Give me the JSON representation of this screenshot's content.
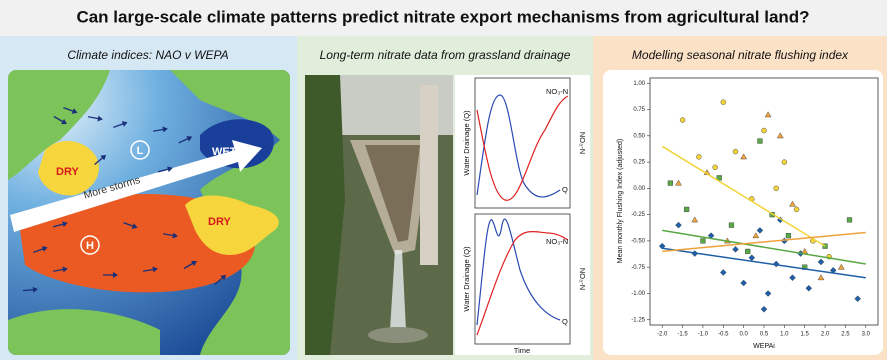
{
  "title": "Can large-scale climate patterns predict nitrate export mechanisms from agricultural land?",
  "panels": [
    {
      "heading": "Climate indices: NAO v WEPA"
    },
    {
      "heading": "Long-term nitrate data from grassland drainage"
    },
    {
      "heading": "Modelling seasonal nitrate flushing index"
    }
  ],
  "map": {
    "labels": {
      "dry_west": "DRY",
      "wet": "WET",
      "storms": "More storms",
      "low": "L",
      "high": "H",
      "dry_east": "DRY"
    }
  },
  "drainage": {
    "charts": [
      {
        "y_label": "Water Drainage (Q)",
        "right_label": "NO₃-N",
        "nitrate_label": "NO₃-N",
        "flow_label": "Q"
      },
      {
        "y_label": "Water Drainage (Q)",
        "right_label": "NO₃-N",
        "nitrate_label": "NO₃-N",
        "flow_label": "Q"
      }
    ],
    "x_label": "Time"
  },
  "scatter": {
    "type": "scatter",
    "x_label": "WEPAi",
    "y_label": "Mean monthly Flushing Index (adjusted)",
    "xlim": [
      -2.3,
      3.3
    ],
    "ylim": [
      -1.3,
      1.05
    ],
    "xticks": [
      {
        "value": -2,
        "label": "-2.0"
      },
      {
        "value": -1.5,
        "label": "-1.5"
      },
      {
        "value": -1,
        "label": "-1.0"
      },
      {
        "value": -0.5,
        "label": "-0.5"
      },
      {
        "value": 0,
        "label": "0.0"
      },
      {
        "value": 0.5,
        "label": "0.5"
      },
      {
        "value": 1,
        "label": "1.0"
      },
      {
        "value": 1.5,
        "label": "1.5"
      },
      {
        "value": 2,
        "label": "2.0"
      },
      {
        "value": 2.5,
        "label": "2.5"
      },
      {
        "value": 3,
        "label": "3.0"
      }
    ],
    "yticks": [
      {
        "value": 1,
        "label": "1.00"
      },
      {
        "value": 0.75,
        "label": "0.75"
      },
      {
        "value": 0.5,
        "label": "0.50"
      },
      {
        "value": 0.25,
        "label": "0.25"
      },
      {
        "value": 0,
        "label": "0.00"
      },
      {
        "value": -0.25,
        "label": "-0.25"
      },
      {
        "value": -0.5,
        "label": "-0.50"
      },
      {
        "value": -0.75,
        "label": "-0.75"
      },
      {
        "value": -1,
        "label": "-1.00"
      },
      {
        "value": -1.25,
        "label": "-1.25"
      }
    ],
    "series": [
      {
        "marker": "diamond",
        "color": "#1f5fa8",
        "x": [
          -2.0,
          -1.6,
          -1.2,
          -0.8,
          -0.5,
          -0.2,
          0.0,
          0.2,
          0.4,
          0.6,
          0.8,
          1.0,
          1.2,
          1.4,
          1.6,
          1.9,
          2.2,
          2.8,
          0.5,
          0.9
        ],
        "y": [
          -0.55,
          -0.35,
          -0.62,
          -0.45,
          -0.8,
          -0.58,
          -0.9,
          -0.66,
          -0.4,
          -1.0,
          -0.72,
          -0.5,
          -0.85,
          -0.62,
          -0.95,
          -0.7,
          -0.78,
          -1.05,
          -1.15,
          -0.3
        ],
        "fit_x": [
          -2,
          3
        ],
        "fit_y": [
          -0.57,
          -0.85
        ]
      },
      {
        "marker": "square",
        "color": "#5aa845",
        "x": [
          -1.8,
          -1.4,
          -1.0,
          -0.6,
          -0.3,
          0.1,
          0.4,
          0.7,
          1.1,
          1.5,
          2.0,
          2.6
        ],
        "y": [
          0.05,
          -0.2,
          -0.5,
          0.1,
          -0.35,
          -0.6,
          0.45,
          -0.25,
          -0.45,
          -0.75,
          -0.55,
          -0.3
        ],
        "fit_x": [
          -2,
          3
        ],
        "fit_y": [
          -0.4,
          -0.72
        ]
      },
      {
        "marker": "circle",
        "color": "#f2d43a",
        "x": [
          -1.5,
          -1.1,
          -0.7,
          -0.5,
          -0.2,
          0.2,
          0.5,
          0.8,
          1.0,
          1.3,
          1.7,
          2.1
        ],
        "y": [
          0.65,
          0.3,
          0.2,
          0.82,
          0.35,
          -0.1,
          0.55,
          0.0,
          0.25,
          -0.2,
          -0.5,
          -0.65
        ],
        "fit_x": [
          -2,
          2
        ],
        "fit_y": [
          0.4,
          -0.55
        ]
      },
      {
        "marker": "triangle",
        "color": "#f0a23a",
        "x": [
          -1.6,
          -1.2,
          -0.9,
          -0.4,
          0.0,
          0.3,
          0.6,
          0.9,
          1.2,
          1.5,
          1.9,
          2.4
        ],
        "y": [
          0.05,
          -0.3,
          0.15,
          -0.5,
          0.3,
          -0.45,
          0.7,
          0.5,
          -0.15,
          -0.6,
          -0.85,
          -0.75
        ],
        "fit_x": [
          -2,
          3
        ],
        "fit_y": [
          -0.6,
          -0.42
        ]
      }
    ]
  }
}
